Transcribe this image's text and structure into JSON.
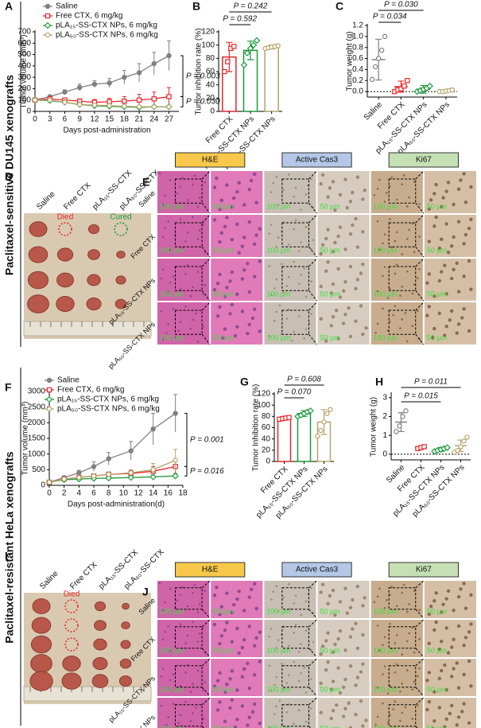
{
  "chart_data": [
    {
      "type": "line",
      "panel": "A",
      "y_label": "Tumor volume (mm³)",
      "x_label": "Days post-administration",
      "x": [
        0,
        3,
        6,
        9,
        12,
        15,
        18,
        21,
        24,
        27
      ],
      "xlim": [
        0,
        29
      ],
      "xticks": [
        0,
        3,
        6,
        9,
        12,
        15,
        18,
        21,
        24,
        27
      ],
      "ylim": [
        0,
        700
      ],
      "yticks": [
        0,
        100,
        200,
        300,
        400,
        500,
        600,
        700
      ],
      "series": [
        {
          "name": "Saline",
          "color": "#808080",
          "marker": "circle",
          "filled": true,
          "values": [
            100,
            130,
            170,
            210,
            240,
            250,
            300,
            340,
            420,
            490
          ],
          "errors": [
            5,
            10,
            20,
            30,
            30,
            40,
            60,
            80,
            100,
            130
          ]
        },
        {
          "name": "Free CTX, 6 mg/kg",
          "color": "#e8262b",
          "marker": "square",
          "filled": false,
          "values": [
            100,
            110,
            100,
            90,
            80,
            85,
            90,
            100,
            110,
            130
          ],
          "errors": [
            3,
            10,
            15,
            20,
            25,
            30,
            40,
            50,
            60,
            80
          ]
        },
        {
          "name": "pLA₁₅-SS-CTX NPs, 6 mg/kg",
          "color": "#1a9a3a",
          "marker": "diamond",
          "filled": false,
          "values": [
            100,
            95,
            80,
            60,
            50,
            45,
            40,
            35,
            40,
            40
          ],
          "errors": [
            3,
            5,
            8,
            10,
            10,
            10,
            12,
            12,
            15,
            15
          ]
        },
        {
          "name": "pLA₅₀-SS-CTX NPs, 6 mg/kg",
          "color": "#b5a46a",
          "marker": "circle",
          "filled": false,
          "values": [
            100,
            100,
            80,
            60,
            55,
            50,
            45,
            40,
            40,
            40
          ],
          "errors": [
            3,
            5,
            8,
            10,
            10,
            10,
            10,
            12,
            12,
            12
          ]
        }
      ],
      "annotations": [
        "P = 0.003",
        "P = 0.030"
      ]
    },
    {
      "type": "bar",
      "panel": "B",
      "y_label": "Tumor inhibition rate (%)",
      "categories": [
        "Free CTX",
        "pLA₁₅-SS-CTX NPs",
        "pLA₅₀-SS-CTX NPs"
      ],
      "values": [
        82,
        92,
        97
      ],
      "errors": [
        22,
        14,
        3
      ],
      "points": [
        [
          60,
          75,
          95,
          98
        ],
        [
          70,
          88,
          95,
          100,
          107
        ],
        [
          95,
          96,
          97,
          98,
          99
        ]
      ],
      "colors": [
        "#e8262b",
        "#1a9a3a",
        "#b5a46a"
      ],
      "markers": [
        "square",
        "diamond",
        "circle"
      ],
      "ylim": [
        0,
        120
      ],
      "yticks": [
        0,
        20,
        40,
        60,
        80,
        100,
        120
      ],
      "annotations": [
        "P = 0.242",
        "P = 0.592"
      ]
    },
    {
      "type": "dot",
      "panel": "C",
      "y_label": "Tumor weight (g)",
      "categories": [
        "Saline",
        "Free CTX",
        "pLA₁₅-SS-CTX NPs",
        "pLA₅₀-SS-CTX NPs"
      ],
      "values": [
        0.58,
        0.09,
        0.04,
        0.01
      ],
      "errors": [
        0.37,
        0.1,
        0.07,
        0.02
      ],
      "points": [
        [
          0.22,
          0.45,
          0.6,
          0.75,
          1.0
        ],
        [
          0.0,
          0.03,
          0.05,
          0.1,
          0.2
        ],
        [
          0.0,
          0.02,
          0.04,
          0.06,
          0.1
        ],
        [
          0.0,
          0.0,
          0.01,
          0.02,
          0.03
        ]
      ],
      "colors": [
        "#808080",
        "#e8262b",
        "#1a9a3a",
        "#b5a46a"
      ],
      "markers": [
        "circle",
        "square",
        "diamond",
        "circle"
      ],
      "ylim": [
        -0.1,
        1.2
      ],
      "yticks": [
        {
          "value": 0,
          "label": "0.0"
        },
        0.2,
        0.4,
        0.6,
        0.8,
        {
          "value": 1,
          "label": "1.0"
        },
        1.2
      ],
      "zero_line": true,
      "annotations": [
        "P = 0.030",
        "P = 0.034"
      ]
    },
    {
      "type": "line",
      "panel": "F",
      "y_label": "Tumor volume (mm³)",
      "x_label": "Days post-administration(d)",
      "x": [
        0,
        2,
        4,
        6,
        8,
        11,
        14,
        17
      ],
      "xlim": [
        0,
        18
      ],
      "xticks": [
        0,
        2,
        4,
        6,
        8,
        10,
        12,
        14,
        16,
        18
      ],
      "ylim": [
        0,
        3000
      ],
      "yticks": [
        0,
        500,
        1000,
        1500,
        2000,
        2500,
        3000
      ],
      "series": [
        {
          "name": "Saline",
          "color": "#808080",
          "marker": "circle",
          "filled": true,
          "values": [
            100,
            250,
            400,
            600,
            850,
            1100,
            1800,
            2300
          ],
          "errors": [
            10,
            40,
            80,
            150,
            200,
            300,
            500,
            600
          ]
        },
        {
          "name": "Free CTX, 6 mg/kg",
          "color": "#e8262b",
          "marker": "square",
          "filled": false,
          "values": [
            100,
            200,
            250,
            300,
            350,
            380,
            450,
            600
          ],
          "errors": [
            10,
            30,
            40,
            60,
            80,
            100,
            150,
            200
          ]
        },
        {
          "name": "pLA₁₅-SS-CTX NPs, 6 mg/kg",
          "color": "#1a9a3a",
          "marker": "diamond",
          "filled": false,
          "values": [
            100,
            180,
            200,
            220,
            230,
            250,
            270,
            300
          ],
          "errors": [
            10,
            20,
            30,
            40,
            40,
            50,
            60,
            80
          ]
        },
        {
          "name": "pLA₅₀-SS-CTX NPs, 6 mg/kg",
          "color": "#b5a46a",
          "marker": "circle",
          "filled": false,
          "values": [
            100,
            200,
            250,
            300,
            350,
            400,
            500,
            800
          ],
          "errors": [
            10,
            30,
            50,
            60,
            80,
            100,
            200,
            350
          ]
        }
      ],
      "annotations": [
        "P = 0.001",
        "P = 0.016"
      ]
    },
    {
      "type": "bar",
      "panel": "G",
      "y_label": "Tumor Inhibition rate (%)",
      "categories": [
        "Free CTX",
        "pLA₁₅-SS-CTX NPs",
        "pLA₅₀-SS-CTX NPs"
      ],
      "values": [
        77,
        85,
        70
      ],
      "errors": [
        3,
        5,
        22
      ],
      "points": [
        [
          75,
          76,
          77,
          78
        ],
        [
          80,
          82,
          85,
          88,
          90
        ],
        [
          45,
          55,
          70,
          85,
          92
        ]
      ],
      "colors": [
        "#e8262b",
        "#1a9a3a",
        "#b5a46a"
      ],
      "markers": [
        "square",
        "diamond",
        "circle"
      ],
      "ylim": [
        0,
        120
      ],
      "yticks": [
        0,
        20,
        40,
        60,
        80,
        100,
        120
      ],
      "annotations": [
        "P = 0.608",
        "P = 0.070"
      ]
    },
    {
      "type": "dot",
      "panel": "H",
      "y_label": "Tumor weight (g)",
      "categories": [
        "Saline",
        "Free CTX",
        "pLA₁₅-SS-CTX NPs",
        "pLA₅₀-SS-CTX NPs"
      ],
      "values": [
        1.7,
        0.35,
        0.25,
        0.45
      ],
      "errors": [
        0.5,
        0.05,
        0.1,
        0.3
      ],
      "points": [
        [
          1.2,
          1.5,
          2.0,
          2.3
        ],
        [
          0.3,
          0.35,
          0.4
        ],
        [
          0.15,
          0.2,
          0.25,
          0.3,
          0.35
        ],
        [
          0.1,
          0.2,
          0.4,
          0.7,
          0.9
        ]
      ],
      "colors": [
        "#808080",
        "#e8262b",
        "#1a9a3a",
        "#b5a46a"
      ],
      "markers": [
        "circle",
        "square",
        "diamond",
        "circle"
      ],
      "ylim": [
        -0.3,
        3.2
      ],
      "yticks": [
        0,
        1,
        2,
        3
      ],
      "zero_line": true,
      "annotations": [
        "P = 0.011",
        "P = 0.015"
      ]
    }
  ],
  "side_labels": [
    "Paclitaxel-sensitive DU145 xenografts",
    "Paclitaxel-resistant HeLa xenografts"
  ],
  "photo_panels": [
    {
      "panel": "D",
      "columns": [
        "Saline",
        "Free CTX",
        "pLA₁₅-SS-CTX",
        "pLA₅₀-SS-CTX"
      ],
      "notes": [
        "Died",
        "Cured"
      ]
    },
    {
      "panel": "I",
      "columns": [
        "Saline",
        "Free CTX",
        "pLA₁₅-SS-CTX",
        "pLA₅₀-SS-CTX"
      ],
      "notes": [
        "Died"
      ]
    }
  ],
  "histology_panels": [
    {
      "panel": "E",
      "stains": [
        "H&E",
        "Active Cas3",
        "Ki67"
      ],
      "rows": [
        "Saline",
        "Free CTX",
        "pLA₁₅-SS-CTX NPs",
        "pLA₅₀-SS-CTX NPs"
      ],
      "scale_labels": [
        "100 µm",
        "50 µm"
      ]
    },
    {
      "panel": "J",
      "stains": [
        "H&E",
        "Active Cas3",
        "Ki67"
      ],
      "rows": [
        "Saline",
        "Free CTX",
        "pLA₁₅-SS-CTX NPs",
        "pLA₅₀-SS-CTX NPs"
      ],
      "scale_labels": [
        "100 µm",
        "50 µm"
      ]
    }
  ]
}
